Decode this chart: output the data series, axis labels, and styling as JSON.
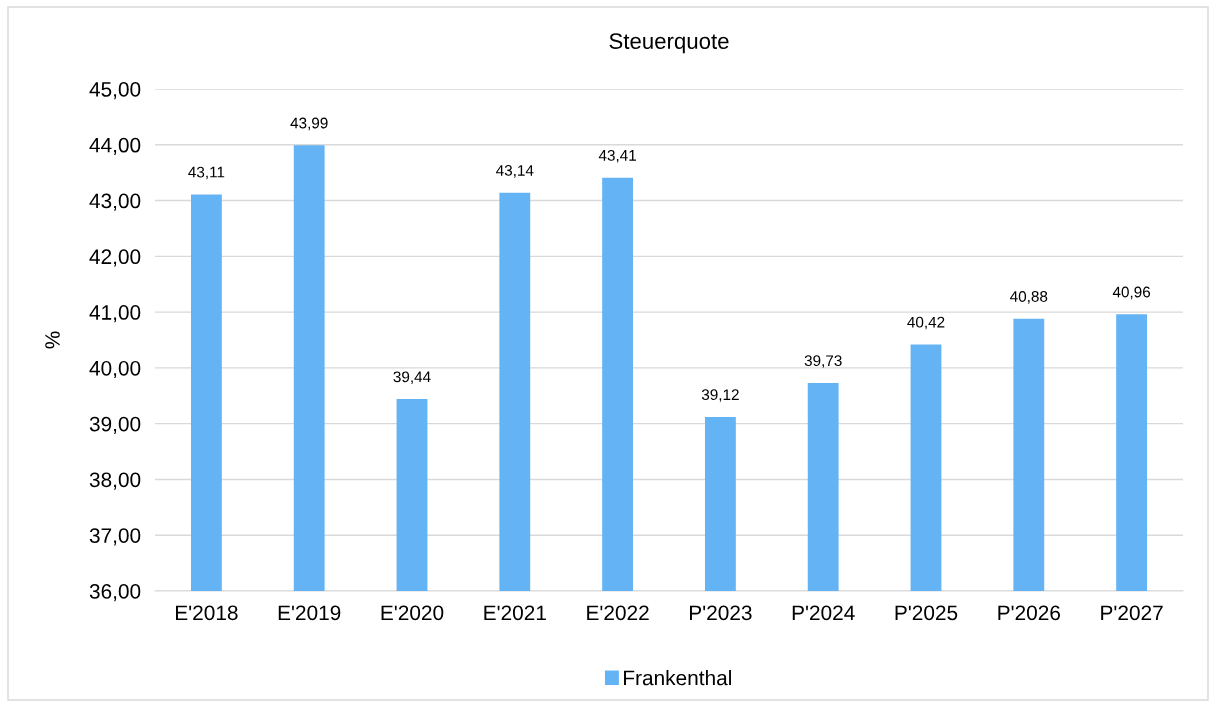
{
  "chart_data": {
    "type": "bar",
    "title": "Steuerquote",
    "ylabel": "%",
    "categories": [
      "E'2018",
      "E'2019",
      "E'2020",
      "E'2021",
      "E'2022",
      "P'2023",
      "P'2024",
      "P'2025",
      "P'2026",
      "P'2027"
    ],
    "series": [
      {
        "name": "Frankenthal",
        "color": "#63b3f5",
        "values": [
          43.11,
          43.99,
          39.44,
          43.14,
          43.41,
          39.12,
          39.73,
          40.42,
          40.88,
          40.96
        ],
        "value_labels": [
          "43,11",
          "43,99",
          "39,44",
          "43,14",
          "43,41",
          "39,12",
          "39,73",
          "40,42",
          "40,88",
          "40,96"
        ]
      }
    ],
    "ylim": [
      36,
      45
    ],
    "yticks": [
      {
        "value": 36,
        "label": "36,00"
      },
      {
        "value": 37,
        "label": "37,00"
      },
      {
        "value": 38,
        "label": "38,00"
      },
      {
        "value": 39,
        "label": "39,00"
      },
      {
        "value": 40,
        "label": "40,00"
      },
      {
        "value": 41,
        "label": "41,00"
      },
      {
        "value": 42,
        "label": "42,00"
      },
      {
        "value": 43,
        "label": "43,00"
      },
      {
        "value": 44,
        "label": "44,00"
      },
      {
        "value": 45,
        "label": "45,00"
      }
    ],
    "grid": "y",
    "legend": "bottom"
  }
}
